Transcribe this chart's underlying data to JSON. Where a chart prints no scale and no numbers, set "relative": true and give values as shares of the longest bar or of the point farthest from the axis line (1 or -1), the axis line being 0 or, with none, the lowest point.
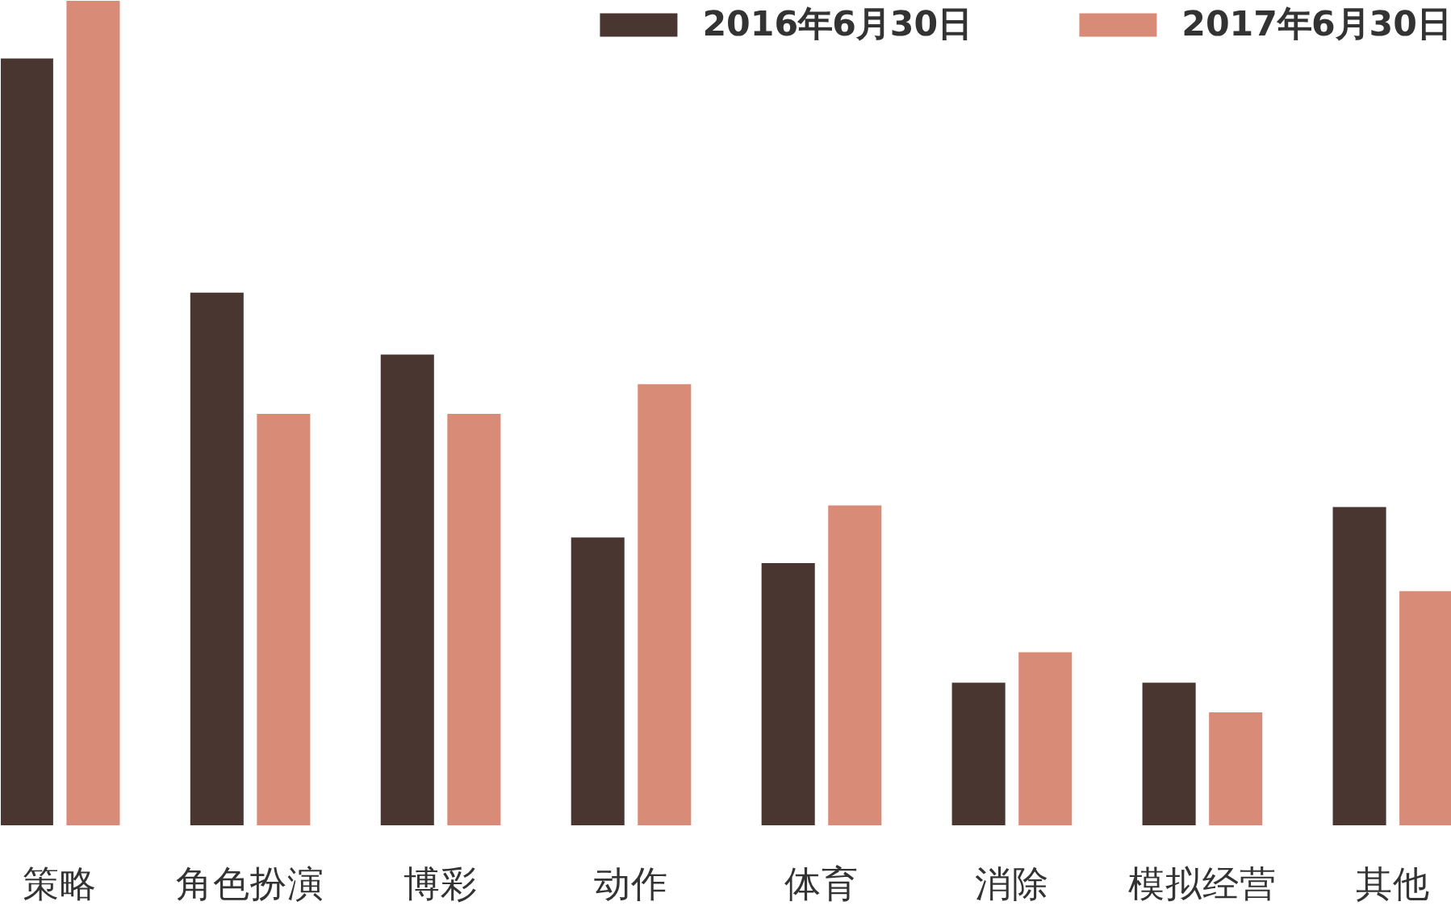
{
  "chart_data": {
    "type": "bar",
    "relative": true,
    "legend": "top right",
    "categories": [
      "策略",
      "角色扮演",
      "博彩",
      "动作",
      "体育",
      "消除",
      "模拟经营",
      "其他"
    ],
    "series": [
      {
        "name": "2016年6月30日",
        "color": "#4a3630",
        "values": [
          0.93,
          0.646,
          0.571,
          0.349,
          0.318,
          0.173,
          0.173,
          0.386
        ]
      },
      {
        "name": "2017年6月30日",
        "color": "#d88b76",
        "values": [
          1,
          0.499,
          0.499,
          0.535,
          0.388,
          0.21,
          0.137,
          0.284
        ]
      }
    ]
  }
}
